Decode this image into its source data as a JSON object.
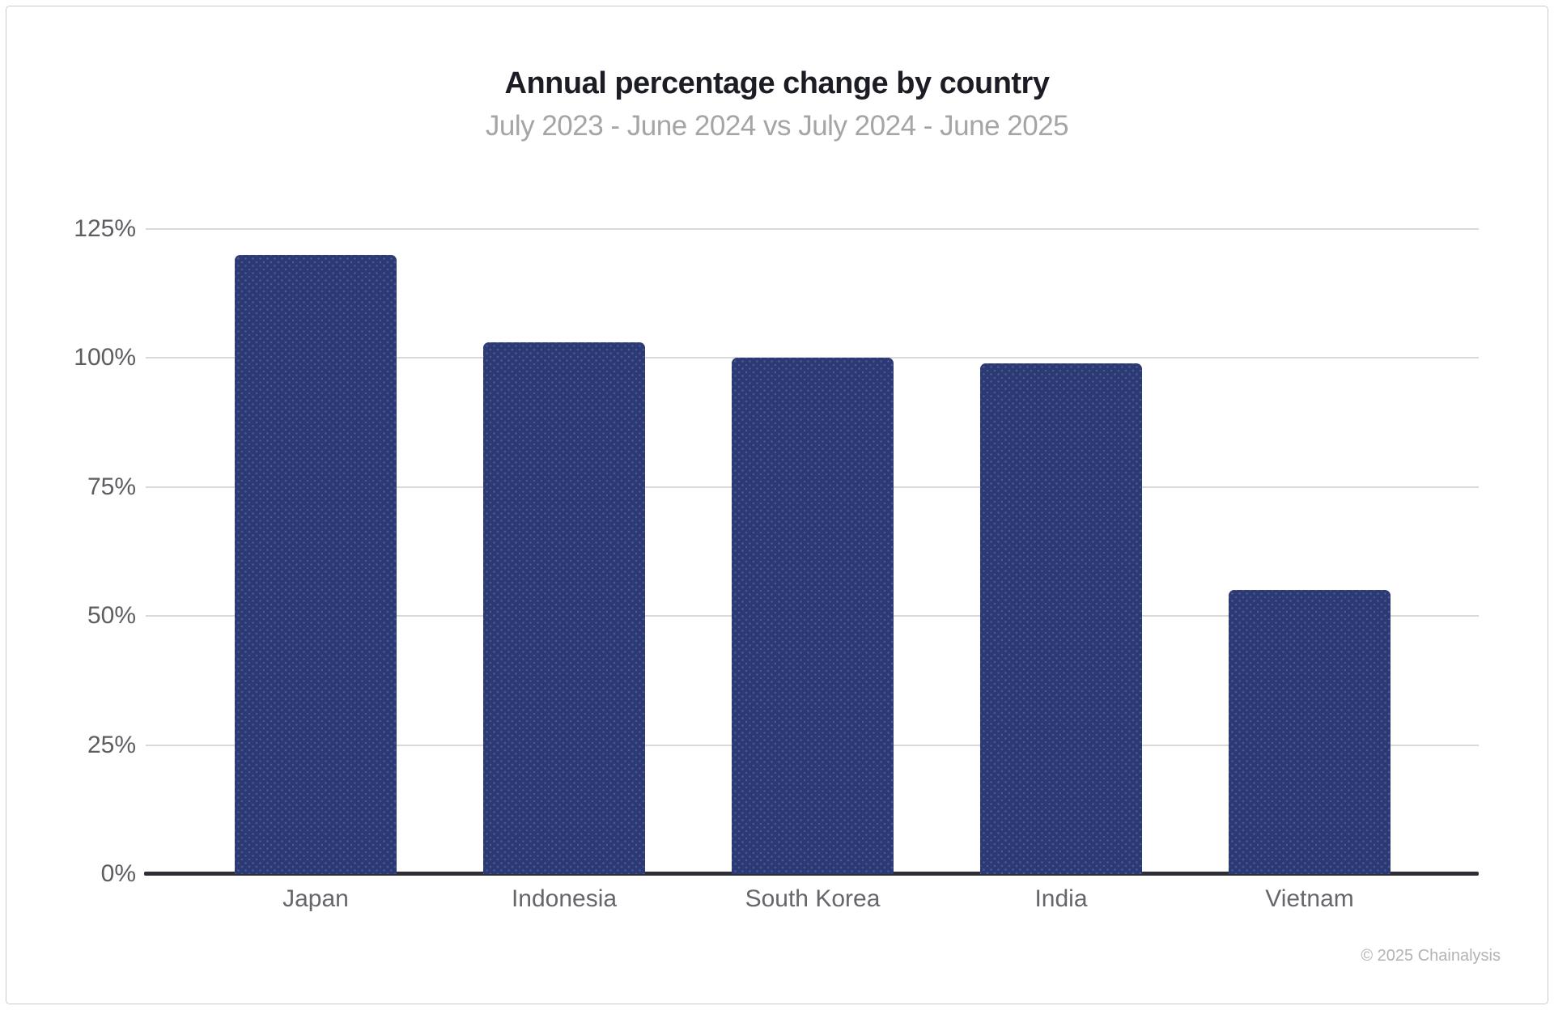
{
  "header": {
    "title": "Annual percentage change by country",
    "subtitle": "July 2023 - June 2024 vs July 2024 - June 2025"
  },
  "footer": {
    "copyright": "© 2025 Chainalysis"
  },
  "chart_data": {
    "type": "bar",
    "title": "Annual percentage change by country",
    "subtitle": "July 2023 - June 2024 vs July 2024 - June 2025",
    "categories": [
      "Japan",
      "Indonesia",
      "South Korea",
      "India",
      "Vietnam"
    ],
    "values": [
      120,
      103,
      100,
      99,
      55
    ],
    "value_unit": "%",
    "xlabel": "",
    "ylabel": "",
    "ylim": [
      0,
      125
    ],
    "yticks": [
      0,
      25,
      50,
      75,
      100,
      125
    ],
    "ytick_labels": [
      "0%",
      "25%",
      "50%",
      "75%",
      "100%",
      "125%"
    ],
    "grid": "horizontal",
    "legend": "none",
    "bar_color": "#2b3974",
    "gridline_color": "#d9d9d9",
    "axis_color": "#2e2e36",
    "annotation": "© 2025 Chainalysis"
  }
}
